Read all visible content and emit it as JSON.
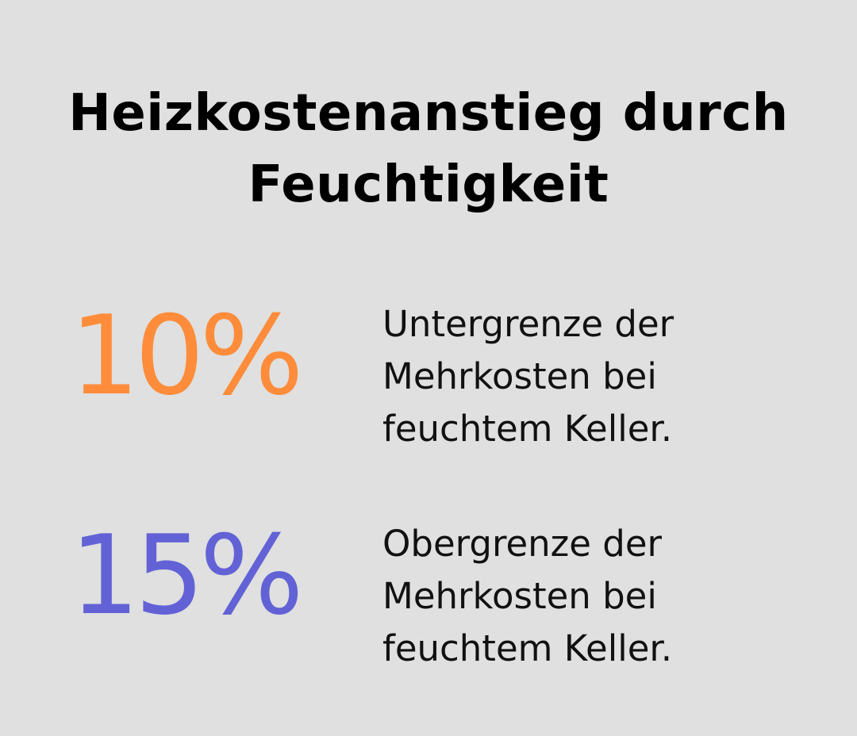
{
  "title": {
    "line1": "Heizkostenanstieg durch",
    "line2": "Feuchtigkeit"
  },
  "stats": [
    {
      "value": "10%",
      "color": "#ff8c3a",
      "lines": [
        "Untergrenze der",
        "Mehrkosten bei",
        "feuchtem Keller."
      ]
    },
    {
      "value": "15%",
      "color": "#6262d6",
      "lines": [
        "Obergrenze der",
        "Mehrkosten bei",
        "feuchtem Keller."
      ]
    }
  ]
}
